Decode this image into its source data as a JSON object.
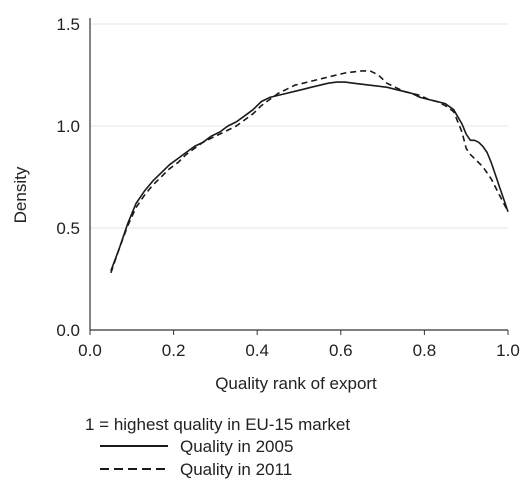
{
  "chart_data": {
    "type": "line",
    "title": "",
    "xlabel": "Quality  rank of export",
    "ylabel": "Density",
    "xlim": [
      0.0,
      1.0
    ],
    "ylim": [
      0.0,
      1.5
    ],
    "xticks": [
      "0.0",
      "0.2",
      "0.4",
      "0.6",
      "0.8",
      "1.0"
    ],
    "yticks": [
      "0.0",
      "0.5",
      "1.0",
      "1.5"
    ],
    "grid": true,
    "legend_title": "1 = highest quality in EU-15 market",
    "legend_position": "bottom",
    "series": [
      {
        "name": "Quality in 2005",
        "style": "solid",
        "color": "#1a1a1a",
        "x": [
          0.05,
          0.07,
          0.09,
          0.11,
          0.13,
          0.15,
          0.17,
          0.19,
          0.21,
          0.23,
          0.25,
          0.27,
          0.29,
          0.31,
          0.33,
          0.35,
          0.37,
          0.39,
          0.4,
          0.41,
          0.42,
          0.43,
          0.45,
          0.47,
          0.49,
          0.51,
          0.53,
          0.55,
          0.57,
          0.59,
          0.61,
          0.63,
          0.65,
          0.67,
          0.69,
          0.71,
          0.73,
          0.75,
          0.77,
          0.79,
          0.81,
          0.83,
          0.85,
          0.87,
          0.89,
          0.9,
          0.91,
          0.92,
          0.93,
          0.94,
          0.95,
          0.96,
          0.97,
          0.98,
          0.99,
          1.0
        ],
        "y": [
          0.29,
          0.4,
          0.52,
          0.62,
          0.68,
          0.73,
          0.77,
          0.81,
          0.84,
          0.87,
          0.9,
          0.92,
          0.95,
          0.97,
          1.0,
          1.02,
          1.05,
          1.08,
          1.1,
          1.12,
          1.13,
          1.14,
          1.15,
          1.16,
          1.17,
          1.18,
          1.19,
          1.2,
          1.21,
          1.215,
          1.215,
          1.21,
          1.205,
          1.2,
          1.195,
          1.19,
          1.18,
          1.17,
          1.16,
          1.14,
          1.13,
          1.12,
          1.11,
          1.08,
          1.01,
          0.96,
          0.93,
          0.93,
          0.92,
          0.9,
          0.87,
          0.82,
          0.76,
          0.7,
          0.64,
          0.58
        ]
      },
      {
        "name": "Quality in 2011",
        "style": "dashed",
        "color": "#1a1a1a",
        "x": [
          0.05,
          0.07,
          0.09,
          0.11,
          0.13,
          0.15,
          0.17,
          0.19,
          0.21,
          0.23,
          0.25,
          0.27,
          0.29,
          0.31,
          0.33,
          0.35,
          0.37,
          0.39,
          0.41,
          0.43,
          0.45,
          0.47,
          0.49,
          0.51,
          0.53,
          0.55,
          0.57,
          0.59,
          0.61,
          0.63,
          0.65,
          0.67,
          0.69,
          0.7,
          0.71,
          0.73,
          0.75,
          0.77,
          0.79,
          0.81,
          0.83,
          0.85,
          0.87,
          0.89,
          0.9,
          0.91,
          0.92,
          0.93,
          0.94,
          0.95,
          0.96,
          0.97,
          0.98,
          0.99,
          1.0
        ],
        "y": [
          0.28,
          0.4,
          0.51,
          0.6,
          0.66,
          0.71,
          0.75,
          0.79,
          0.82,
          0.86,
          0.89,
          0.92,
          0.94,
          0.96,
          0.98,
          1.0,
          1.03,
          1.06,
          1.1,
          1.13,
          1.16,
          1.18,
          1.2,
          1.21,
          1.22,
          1.23,
          1.24,
          1.25,
          1.26,
          1.265,
          1.27,
          1.27,
          1.25,
          1.23,
          1.21,
          1.19,
          1.17,
          1.16,
          1.15,
          1.13,
          1.12,
          1.1,
          1.07,
          0.97,
          0.89,
          0.86,
          0.84,
          0.82,
          0.8,
          0.77,
          0.74,
          0.7,
          0.66,
          0.62,
          0.58
        ]
      }
    ]
  }
}
